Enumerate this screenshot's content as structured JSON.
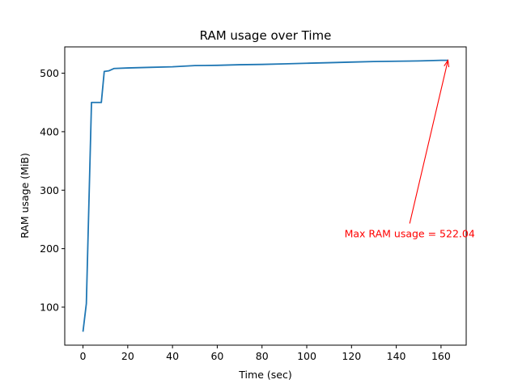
{
  "chart_data": {
    "type": "line",
    "title": "RAM usage over Time",
    "xlabel": "Time (sec)",
    "ylabel": "RAM usage (MiB)",
    "xlim": [
      -8.15,
      171.25
    ],
    "ylim": [
      35.0,
      545.0
    ],
    "xticks": [
      0,
      20,
      40,
      60,
      80,
      100,
      120,
      140,
      160
    ],
    "yticks": [
      100,
      200,
      300,
      400,
      500
    ],
    "grid": false,
    "series": [
      {
        "color": "#1f77b4",
        "x": [
          0,
          1.5,
          3.8,
          8.2,
          9.5,
          11.5,
          13.8,
          20,
          30,
          40,
          50,
          60,
          70,
          80,
          90,
          100,
          110,
          120,
          130,
          140,
          150,
          160,
          163.1
        ],
        "y": [
          58,
          106,
          450,
          450,
          503,
          504,
          508,
          509,
          510,
          511,
          513,
          513.5,
          514.5,
          515,
          516,
          517,
          518,
          519,
          520,
          520.5,
          521,
          522,
          522.04
        ]
      }
    ],
    "annotation": {
      "text": "Max RAM usage = 522.04",
      "point": [
        163.1,
        522.04
      ],
      "text_pos": [
        146,
        232
      ],
      "color": "#ff0000"
    }
  }
}
